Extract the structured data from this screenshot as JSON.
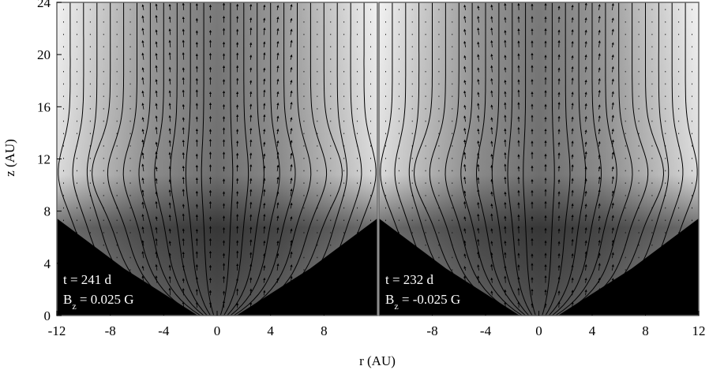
{
  "chart_data": [
    {
      "type": "field-map",
      "xlabel": "r  (AU)",
      "ylabel": "z  (AU)",
      "xlim": [
        -12,
        12
      ],
      "xticks": [
        -12,
        -8,
        -4,
        0,
        4,
        8
      ],
      "ylim": [
        0,
        24
      ],
      "yticks": [
        0,
        4,
        8,
        12,
        16,
        20,
        24
      ],
      "annotation": "t = 241 d",
      "field_symbol": "B",
      "field_subscript": "z",
      "field_text": " = 0.025 G"
    },
    {
      "type": "field-map",
      "xlim": [
        -12,
        12
      ],
      "xticks": [
        -8,
        -4,
        0,
        4,
        8,
        12
      ],
      "ylim": [
        0,
        24
      ],
      "annotation": "t = 232 d",
      "field_symbol": "B",
      "field_subscript": "z",
      "field_text": " = -0.025 G"
    }
  ]
}
